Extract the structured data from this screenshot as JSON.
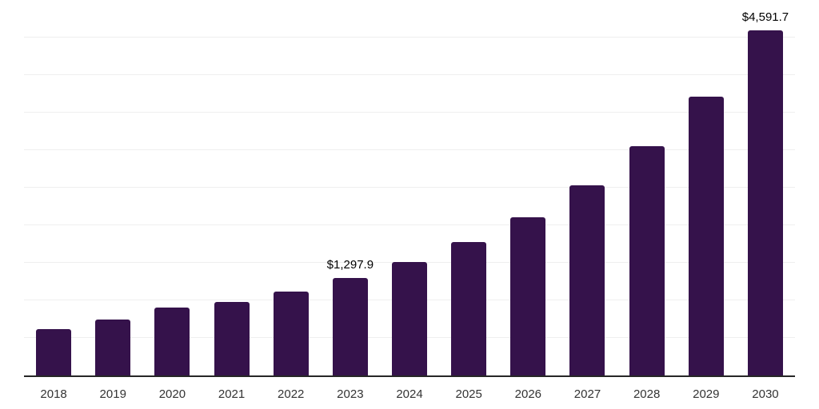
{
  "chart_data": {
    "type": "bar",
    "title": "",
    "xlabel": "",
    "ylabel": "",
    "categories": [
      "2018",
      "2019",
      "2020",
      "2021",
      "2022",
      "2023",
      "2024",
      "2025",
      "2026",
      "2027",
      "2028",
      "2029",
      "2030"
    ],
    "values": [
      615,
      740,
      905,
      980,
      1115,
      1297.9,
      1510,
      1775,
      2105,
      2530,
      3050,
      3710,
      4591.7
    ],
    "data_labels": [
      null,
      null,
      null,
      null,
      null,
      "$1,297.9",
      null,
      null,
      null,
      null,
      null,
      null,
      "$4,591.7"
    ],
    "ylim": [
      0,
      5000
    ],
    "gridline_step": 500,
    "grid": "horizontal-only",
    "y_tick_labels_visible": false,
    "legend_position": "none",
    "colors": {
      "bar": "#35124b",
      "gridline": "#efefef",
      "axis": "#262626",
      "tick_label": "#333333",
      "data_label": "#000000",
      "background": "#ffffff"
    }
  }
}
